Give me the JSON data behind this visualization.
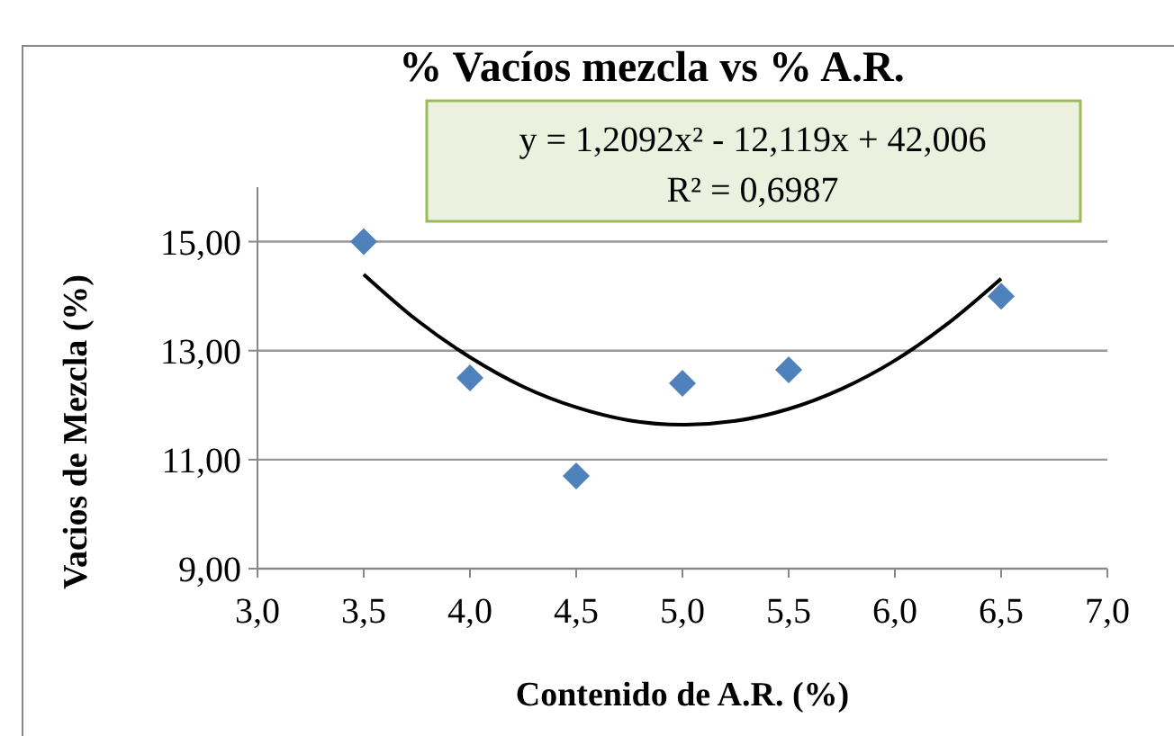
{
  "chart_data": {
    "type": "scatter",
    "title": "% Vacíos mezcla vs % A.R.",
    "xlabel": "Contenido de A.R. (%)",
    "ylabel": "Vacios de Mezcla (%)",
    "annotations": [
      "y = 1,2092x² - 12,119x + 42,006",
      "R² = 0,6987"
    ],
    "xlim": [
      3,
      7
    ],
    "xticks": [
      {
        "value": 3,
        "label": "3,0"
      },
      {
        "value": 3.5,
        "label": "3,5"
      },
      {
        "value": 4,
        "label": "4,0"
      },
      {
        "value": 4.5,
        "label": "4,5"
      },
      {
        "value": 5,
        "label": "5,0"
      },
      {
        "value": 5.5,
        "label": "5,5"
      },
      {
        "value": 6,
        "label": "6,0"
      },
      {
        "value": 6.5,
        "label": "6,5"
      },
      {
        "value": 7,
        "label": "7,0"
      }
    ],
    "ylim": [
      9,
      16
    ],
    "yticks": [
      {
        "value": 9,
        "label": "9,00"
      },
      {
        "value": 11,
        "label": "11,00"
      },
      {
        "value": 13,
        "label": "13,00"
      },
      {
        "value": 15,
        "label": "15,00"
      }
    ],
    "grid": "y",
    "series": [
      {
        "marker": "diamond",
        "color": "#4f81bd",
        "x": [
          3.5,
          4,
          4.5,
          5,
          5.5,
          6.5
        ],
        "values": [
          15.0,
          12.5,
          10.7,
          12.4,
          12.65,
          14.0
        ]
      },
      {
        "type": "line",
        "marker": "none",
        "color": "#000000",
        "line_style": "solid",
        "x": [
          3.5,
          3.75,
          4,
          4.25,
          4.5,
          4.75,
          5,
          5.25,
          5.5,
          5.75,
          6,
          6.25,
          6.5
        ],
        "values": [
          14.4,
          13.56,
          12.88,
          12.34,
          11.96,
          11.72,
          11.64,
          11.71,
          11.93,
          12.3,
          12.82,
          13.5,
          14.32
        ]
      }
    ]
  }
}
